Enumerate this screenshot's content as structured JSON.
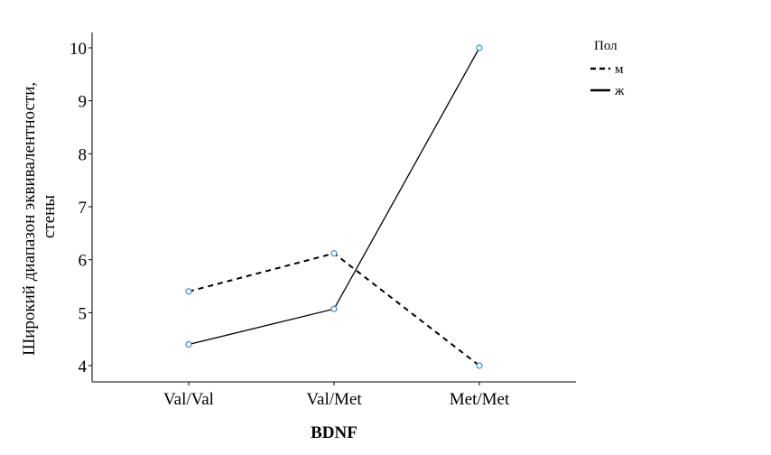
{
  "chart_data": {
    "type": "line",
    "categories": [
      "Val/Val",
      "Val/Met",
      "Met/Met"
    ],
    "xlabel": "BDNF",
    "ylabel_lines": [
      "Широкий диапазон эквивалентности,",
      "стены"
    ],
    "ylim": [
      3.75,
      10.25
    ],
    "yticks": [
      4,
      5,
      6,
      7,
      8,
      9,
      10
    ],
    "legend": {
      "title": "Пол",
      "position": "right"
    },
    "series": [
      {
        "name": "м",
        "values": [
          5.4,
          6.12,
          4.0
        ],
        "style": "dashed"
      },
      {
        "name": "ж",
        "values": [
          4.4,
          5.07,
          10.0
        ],
        "style": "solid"
      }
    ],
    "colors": {
      "line": "#000000",
      "marker": "#3f8fbf",
      "axis": "#000000"
    },
    "grid": false
  }
}
